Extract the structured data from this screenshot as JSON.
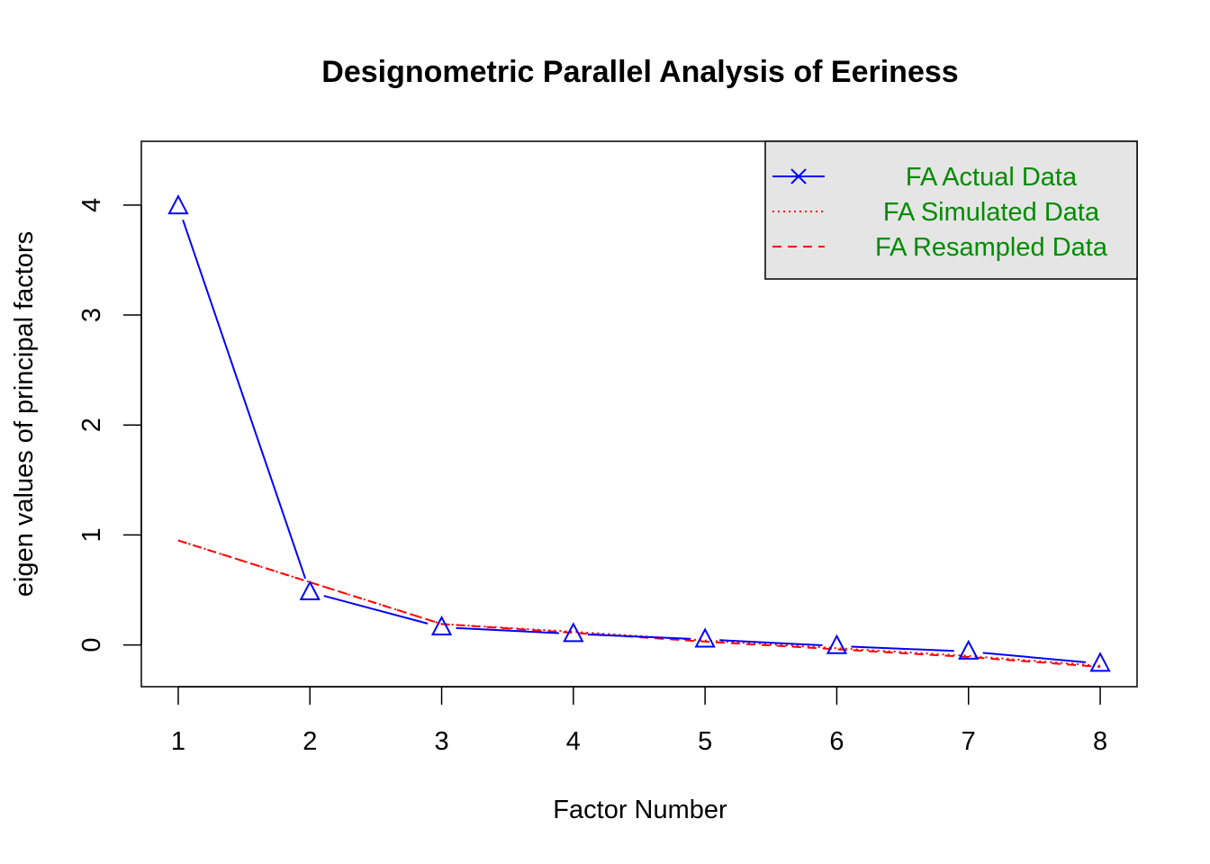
{
  "chart_data": {
    "type": "line",
    "title": "Designometric Parallel Analysis of Eeriness",
    "xlabel": "Factor Number",
    "ylabel": "eigen values of principal factors",
    "x": [
      1,
      2,
      3,
      4,
      5,
      6,
      7,
      8
    ],
    "xticks": [
      "1",
      "2",
      "3",
      "4",
      "5",
      "6",
      "7",
      "8"
    ],
    "yticks": [
      "0",
      "1",
      "2",
      "3",
      "4"
    ],
    "xlim": [
      0.72,
      8.28
    ],
    "ylim": [
      -0.38,
      4.58
    ],
    "grid": false,
    "legend_position": "top-right",
    "series": [
      {
        "name": "FA  Actual Data",
        "style": "solid",
        "marker": "triangle",
        "legend_marker": "x",
        "color": "#0000ff",
        "values": [
          3.99,
          0.48,
          0.16,
          0.1,
          0.05,
          -0.01,
          -0.06,
          -0.17
        ]
      },
      {
        "name": "FA  Simulated Data",
        "style": "dotted",
        "color": "#ff0000",
        "values": [
          0.95,
          0.57,
          0.19,
          0.12,
          0.04,
          -0.03,
          -0.1,
          -0.19
        ]
      },
      {
        "name": "FA  Resampled Data",
        "style": "dashed",
        "color": "#ff0000",
        "values": [
          0.95,
          0.57,
          0.19,
          0.11,
          0.03,
          -0.04,
          -0.11,
          -0.2
        ]
      }
    ]
  }
}
